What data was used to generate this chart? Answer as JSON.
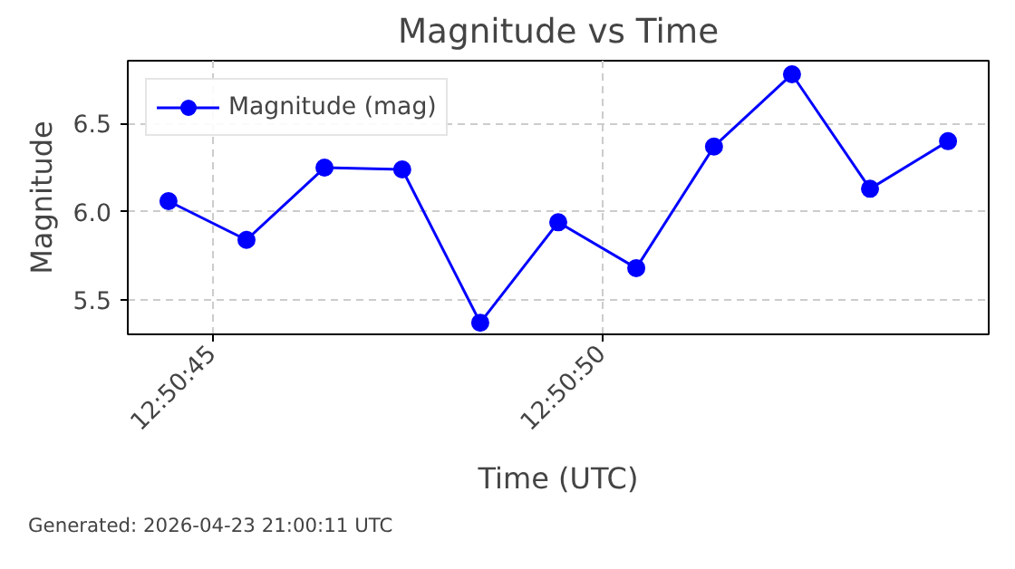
{
  "chart_data": {
    "type": "line",
    "title": "Magnitude vs Time",
    "xlabel": "Time (UTC)",
    "ylabel": "Magnitude",
    "annotations": [
      "Generated: 2026-04-23 21:00:11 UTC"
    ],
    "x": [
      12.845675,
      12.845953,
      12.846231,
      12.846508,
      12.846786,
      12.847064,
      12.847342,
      12.847619,
      12.847897,
      12.848175,
      12.848453
    ],
    "series": [
      {
        "name": "Magnitude (mag)",
        "color": "#0000ff",
        "values": [
          6.06,
          5.84,
          6.25,
          6.24,
          5.37,
          5.94,
          5.68,
          6.37,
          6.78,
          6.13,
          6.4
        ]
      }
    ],
    "xlim": [
      12.84553,
      12.848598
    ],
    "ylim": [
      5.304,
      6.857
    ],
    "xticks": [
      {
        "value": 12.845833,
        "label": "12:50:45"
      },
      {
        "value": 12.847222,
        "label": "12:50:50"
      }
    ],
    "yticks": [
      {
        "value": 5.5,
        "label": "5.5"
      },
      {
        "value": 6.0,
        "label": "6.0"
      },
      {
        "value": 6.5,
        "label": "6.5"
      }
    ],
    "grid": true,
    "legend": "top left",
    "marker": "circle",
    "line_style": "solid"
  }
}
